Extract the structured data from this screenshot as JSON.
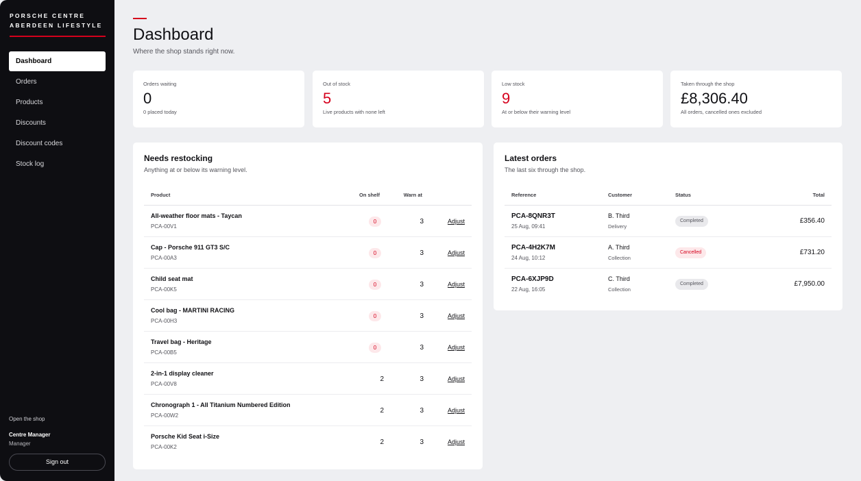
{
  "brand": {
    "line1": "PORSCHE CENTRE",
    "line2": "ABERDEEN LIFESTYLE"
  },
  "nav": [
    {
      "label": "Dashboard",
      "active": true
    },
    {
      "label": "Orders",
      "active": false
    },
    {
      "label": "Products",
      "active": false
    },
    {
      "label": "Discounts",
      "active": false
    },
    {
      "label": "Discount codes",
      "active": false
    },
    {
      "label": "Stock log",
      "active": false
    }
  ],
  "sidebar_footer": {
    "open_shop": "Open the shop",
    "user_name": "Centre Manager",
    "user_role": "Manager",
    "sign_out": "Sign out"
  },
  "header": {
    "title": "Dashboard",
    "subtitle": "Where the shop stands right now."
  },
  "stats": [
    {
      "label": "Orders waiting",
      "value": "0",
      "note": "0 placed today",
      "accent": false
    },
    {
      "label": "Out of stock",
      "value": "5",
      "note": "Live products with none left",
      "accent": true
    },
    {
      "label": "Low stock",
      "value": "9",
      "note": "At or below their warning level",
      "accent": true
    },
    {
      "label": "Taken through the shop",
      "value": "£8,306.40",
      "note": "All orders, cancelled ones excluded",
      "accent": false
    }
  ],
  "restock": {
    "title": "Needs restocking",
    "subtitle": "Anything at or below its warning level.",
    "columns": {
      "product": "Product",
      "on_shelf": "On shelf",
      "warn_at": "Warn at"
    },
    "adjust_label": "Adjust",
    "rows": [
      {
        "name": "All-weather floor mats - Taycan",
        "code": "PCA-00V1",
        "on_shelf": "0",
        "warn_at": "3"
      },
      {
        "name": "Cap - Porsche 911 GT3 S/C",
        "code": "PCA-00A3",
        "on_shelf": "0",
        "warn_at": "3"
      },
      {
        "name": "Child seat mat",
        "code": "PCA-00K5",
        "on_shelf": "0",
        "warn_at": "3"
      },
      {
        "name": "Cool bag - MARTINI RACING",
        "code": "PCA-00H3",
        "on_shelf": "0",
        "warn_at": "3"
      },
      {
        "name": "Travel bag - Heritage",
        "code": "PCA-00B5",
        "on_shelf": "0",
        "warn_at": "3"
      },
      {
        "name": "2-in-1 display cleaner",
        "code": "PCA-00V8",
        "on_shelf": "2",
        "warn_at": "3"
      },
      {
        "name": "Chronograph 1 - All Titanium Numbered Edition",
        "code": "PCA-00W2",
        "on_shelf": "2",
        "warn_at": "3"
      },
      {
        "name": "Porsche Kid Seat i-Size",
        "code": "PCA-00K2",
        "on_shelf": "2",
        "warn_at": "3"
      }
    ]
  },
  "orders": {
    "title": "Latest orders",
    "subtitle": "The last six through the shop.",
    "columns": {
      "reference": "Reference",
      "customer": "Customer",
      "status": "Status",
      "total": "Total"
    },
    "rows": [
      {
        "ref": "PCA-8QNR3T",
        "date": "25 Aug, 09:41",
        "customer": "B. Third",
        "mode": "Delivery",
        "status": "Completed",
        "status_type": "completed",
        "total": "£356.40"
      },
      {
        "ref": "PCA-4H2K7M",
        "date": "24 Aug, 10:12",
        "customer": "A. Third",
        "mode": "Collection",
        "status": "Cancelled",
        "status_type": "cancelled",
        "total": "£731.20"
      },
      {
        "ref": "PCA-6XJP9D",
        "date": "22 Aug, 16:05",
        "customer": "C. Third",
        "mode": "Collection",
        "status": "Completed",
        "status_type": "completed",
        "total": "£7,950.00"
      }
    ]
  },
  "colors": {
    "accent": "#d5001c",
    "sidebar": "#0e0e12",
    "background": "#eeeff2"
  }
}
